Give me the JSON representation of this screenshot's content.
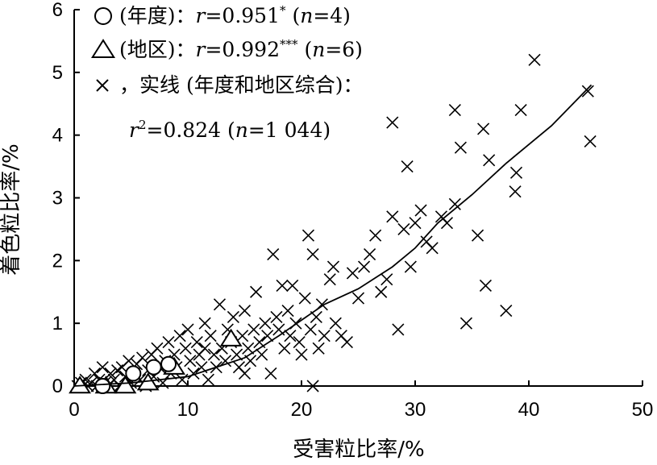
{
  "chart_data": {
    "type": "scatter",
    "xlabel": "受害粒比率/%",
    "ylabel": "着色粒比率/%",
    "xlim": [
      0,
      50
    ],
    "ylim": [
      0,
      6
    ],
    "xticks": [
      "0",
      "10",
      "20",
      "30",
      "40",
      "50"
    ],
    "yticks": [
      "0",
      "1",
      "2",
      "3",
      "4",
      "5",
      "6"
    ],
    "grid": false,
    "legend_position": "top-left",
    "legend": [
      {
        "marker": "circle",
        "label": "(年度)：",
        "stat": "r",
        "stat_value": "=0.951",
        "sig": "*",
        "n_part": "n",
        "n_value": "=4"
      },
      {
        "marker": "triangle",
        "label": "(地区)：",
        "stat": "r",
        "stat_value": "=0.992",
        "sig": "***",
        "n_part": "n",
        "n_value": "=6"
      },
      {
        "marker": "cross",
        "label": "，实线 (年度和地区综合)：",
        "stat": "r",
        "stat_exp": "2",
        "stat_value": "=0.824",
        "n_part": "n",
        "n_value": "=1 044"
      }
    ],
    "series": [
      {
        "marker": "circle",
        "points": [
          [
            2.5,
            0.0
          ],
          [
            5.2,
            0.2
          ],
          [
            7.0,
            0.3
          ],
          [
            8.3,
            0.35
          ]
        ]
      },
      {
        "marker": "triangle",
        "points": [
          [
            0.5,
            0.0
          ],
          [
            2.8,
            0.0
          ],
          [
            4.5,
            0.0
          ],
          [
            6.5,
            0.05
          ],
          [
            8.8,
            0.3
          ],
          [
            13.8,
            0.75
          ]
        ]
      },
      {
        "marker": "cross",
        "points": [
          [
            0.3,
            0.0
          ],
          [
            0.6,
            0.05
          ],
          [
            0.8,
            0.0
          ],
          [
            1.0,
            0.1
          ],
          [
            1.2,
            0.0
          ],
          [
            1.5,
            0.05
          ],
          [
            1.8,
            0.2
          ],
          [
            2.0,
            0.0
          ],
          [
            2.2,
            0.1
          ],
          [
            2.5,
            0.3
          ],
          [
            2.7,
            0.05
          ],
          [
            3.0,
            0.0
          ],
          [
            3.2,
            0.2
          ],
          [
            3.5,
            0.1
          ],
          [
            3.8,
            0.25
          ],
          [
            4.0,
            0.0
          ],
          [
            4.2,
            0.3
          ],
          [
            4.5,
            0.15
          ],
          [
            4.8,
            0.4
          ],
          [
            5.0,
            0.05
          ],
          [
            5.3,
            0.2
          ],
          [
            5.5,
            0.35
          ],
          [
            5.8,
            0.1
          ],
          [
            6.0,
            0.45
          ],
          [
            6.3,
            0.0
          ],
          [
            6.5,
            0.25
          ],
          [
            6.8,
            0.5
          ],
          [
            7.0,
            0.15
          ],
          [
            7.3,
            0.6
          ],
          [
            7.5,
            0.3
          ],
          [
            7.8,
            0.05
          ],
          [
            8.0,
            0.4
          ],
          [
            8.3,
            0.7
          ],
          [
            8.5,
            0.2
          ],
          [
            8.8,
            0.5
          ],
          [
            9.0,
            0.3
          ],
          [
            9.3,
            0.8
          ],
          [
            9.5,
            0.1
          ],
          [
            9.8,
            0.6
          ],
          [
            10.0,
            0.9
          ],
          [
            10.2,
            0.4
          ],
          [
            10.5,
            0.2
          ],
          [
            10.8,
            0.7
          ],
          [
            11.0,
            0.5
          ],
          [
            11.2,
            0.3
          ],
          [
            11.5,
            0.6
          ],
          [
            11.8,
            0.1
          ],
          [
            12.0,
            0.8
          ],
          [
            12.3,
            0.5
          ],
          [
            12.5,
            0.3
          ],
          [
            12.8,
            1.3
          ],
          [
            13.0,
            0.6
          ],
          [
            13.3,
            0.4
          ],
          [
            13.5,
            0.9
          ],
          [
            13.8,
            0.7
          ],
          [
            14.0,
            1.1
          ],
          [
            14.3,
            0.5
          ],
          [
            14.5,
            0.3
          ],
          [
            14.8,
            0.8
          ],
          [
            15.0,
            1.2
          ],
          [
            15.3,
            0.6
          ],
          [
            15.5,
            0.4
          ],
          [
            15.8,
            0.9
          ],
          [
            16.0,
            1.5
          ],
          [
            16.3,
            0.7
          ],
          [
            16.5,
            0.5
          ],
          [
            16.8,
            1.0
          ],
          [
            17.0,
            0.8
          ],
          [
            17.3,
            0.2
          ],
          [
            17.5,
            2.1
          ],
          [
            17.8,
            1.1
          ],
          [
            18.0,
            0.9
          ],
          [
            18.3,
            1.6
          ],
          [
            18.5,
            0.6
          ],
          [
            18.8,
            1.2
          ],
          [
            19.0,
            0.8
          ],
          [
            19.2,
            1.6
          ],
          [
            19.5,
            1.0
          ],
          [
            19.8,
            0.7
          ],
          [
            20.0,
            0.5
          ],
          [
            20.3,
            1.4
          ],
          [
            20.6,
            2.4
          ],
          [
            20.8,
            0.9
          ],
          [
            21.0,
            2.1
          ],
          [
            21.3,
            1.1
          ],
          [
            21.5,
            0.6
          ],
          [
            21.8,
            1.3
          ],
          [
            22.0,
            0.8
          ],
          [
            22.5,
            1.7
          ],
          [
            22.8,
            1.9
          ],
          [
            23.0,
            1.0
          ],
          [
            23.5,
            0.8
          ],
          [
            24.0,
            0.7
          ],
          [
            24.5,
            1.8
          ],
          [
            25.0,
            1.4
          ],
          [
            25.5,
            1.9
          ],
          [
            26.0,
            2.1
          ],
          [
            26.5,
            2.4
          ],
          [
            27.0,
            1.5
          ],
          [
            27.5,
            1.7
          ],
          [
            28.0,
            2.7
          ],
          [
            28.5,
            0.9
          ],
          [
            29.0,
            2.5
          ],
          [
            29.3,
            3.5
          ],
          [
            29.6,
            1.9
          ],
          [
            30.0,
            2.6
          ],
          [
            30.5,
            2.8
          ],
          [
            31.0,
            2.3
          ],
          [
            31.5,
            2.2
          ],
          [
            32.3,
            2.7
          ],
          [
            32.8,
            2.6
          ],
          [
            33.5,
            2.9
          ],
          [
            34.0,
            3.8
          ],
          [
            34.5,
            1.0
          ],
          [
            35.5,
            2.4
          ],
          [
            36.0,
            4.1
          ],
          [
            36.2,
            1.6
          ],
          [
            36.5,
            3.6
          ],
          [
            38.0,
            1.2
          ],
          [
            38.8,
            3.1
          ],
          [
            38.9,
            3.4
          ],
          [
            39.3,
            4.4
          ],
          [
            40.5,
            5.2
          ],
          [
            45.2,
            4.7
          ],
          [
            45.4,
            3.9
          ],
          [
            33.5,
            4.4
          ],
          [
            28.0,
            4.2
          ],
          [
            21.0,
            0.0
          ],
          [
            15.0,
            0.2
          ],
          [
            11.5,
            1.0
          ]
        ]
      }
    ],
    "fit_line": {
      "points": [
        [
          0,
          0.0
        ],
        [
          5,
          0.05
        ],
        [
          10,
          0.15
        ],
        [
          15,
          0.45
        ],
        [
          18,
          0.8
        ],
        [
          20,
          1.05
        ],
        [
          22,
          1.3
        ],
        [
          25,
          1.55
        ],
        [
          28,
          1.9
        ],
        [
          30,
          2.2
        ],
        [
          32,
          2.6
        ],
        [
          35,
          3.05
        ],
        [
          38,
          3.55
        ],
        [
          40,
          3.85
        ],
        [
          42,
          4.15
        ],
        [
          45.5,
          4.8
        ]
      ]
    }
  }
}
